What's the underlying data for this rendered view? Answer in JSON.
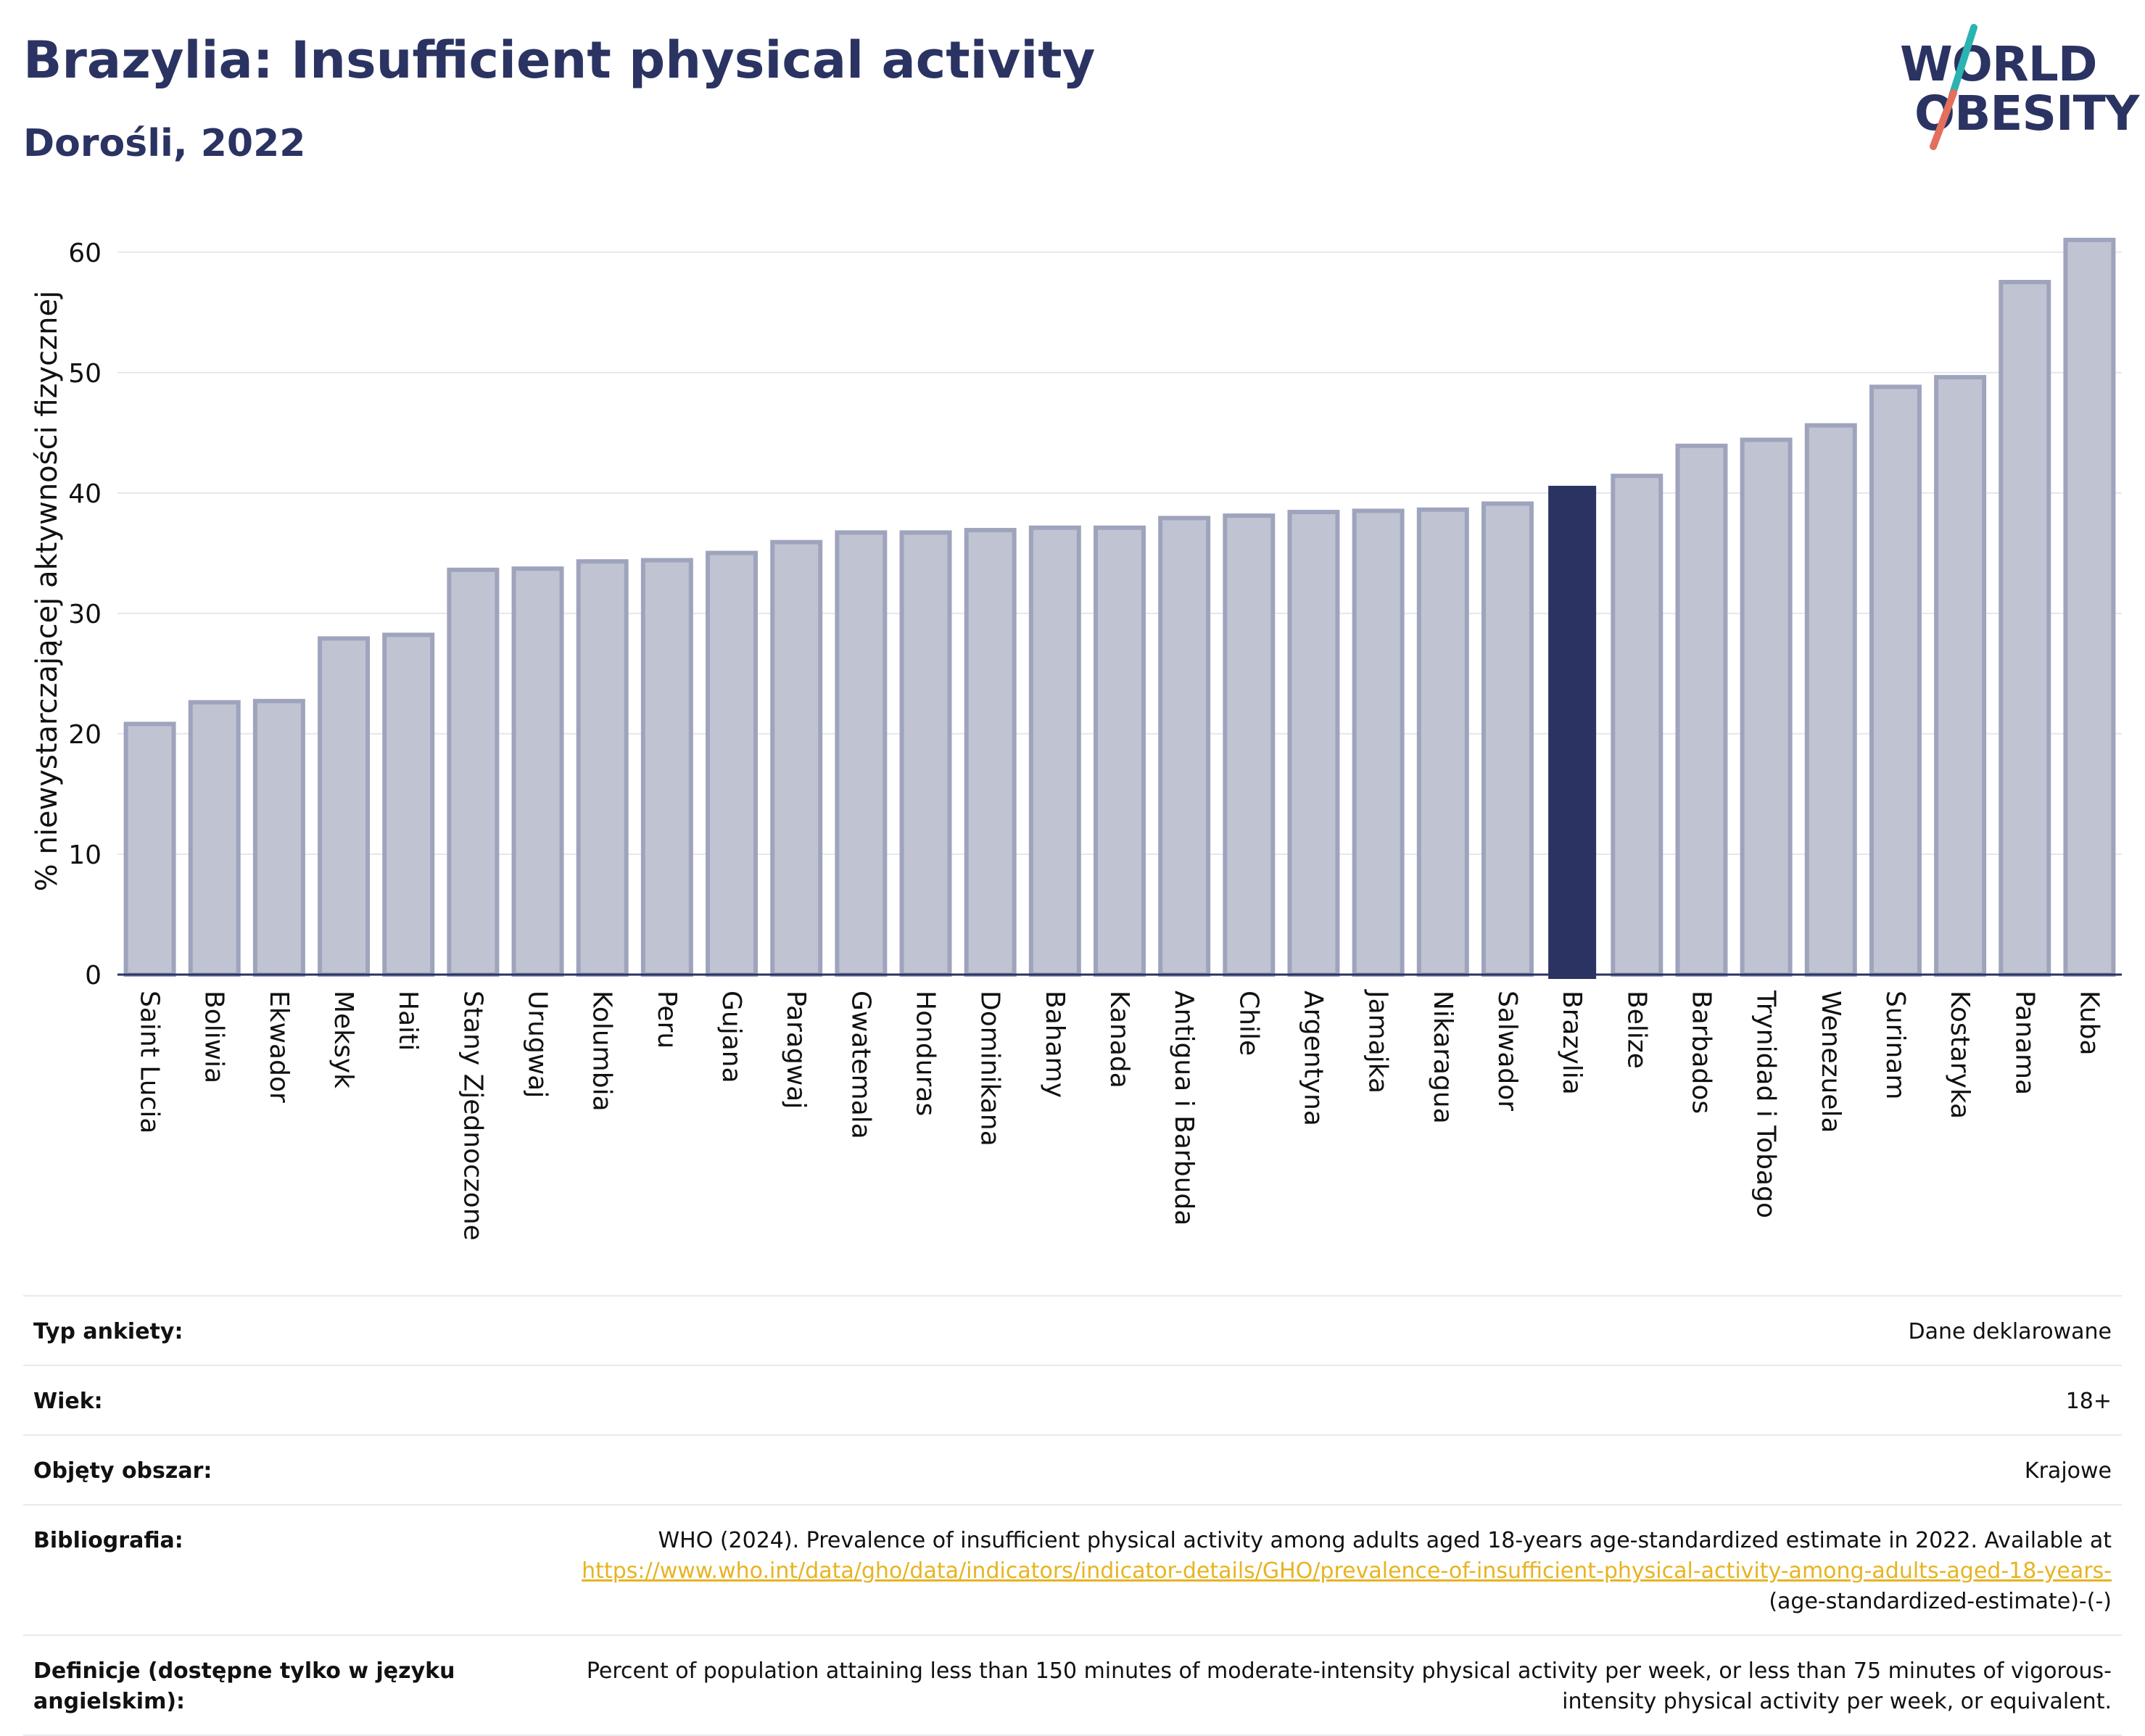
{
  "header": {
    "title": "Brazylia: Insufficient physical activity",
    "subtitle": "Dorośli, 2022"
  },
  "logo": {
    "line1": "WORLD",
    "line2": "OBESITY",
    "colors": {
      "text": "#2a3362",
      "slash_top": "#2bb3b1",
      "slash_bottom": "#e36f5c"
    }
  },
  "chart_data": {
    "type": "bar",
    "ylabel": "% niewystarczającej aktywności fizycznej",
    "ylim": [
      0,
      63
    ],
    "yticks": [
      0,
      10,
      20,
      30,
      40,
      50,
      60
    ],
    "grid": true,
    "highlight": "Brazylia",
    "colors": {
      "bar": "#c0c3d2",
      "bar_border": "#9fa4bd",
      "highlight": "#2a3362"
    },
    "categories": [
      "Saint Lucia",
      "Boliwia",
      "Ekwador",
      "Meksyk",
      "Haiti",
      "Stany Zjednoczone",
      "Urugwaj",
      "Kolumbia",
      "Peru",
      "Gujana",
      "Paragwaj",
      "Gwatemala",
      "Honduras",
      "Dominikana",
      "Bahamy",
      "Kanada",
      "Antigua i Barbuda",
      "Chile",
      "Argentyna",
      "Jamajka",
      "Nikaragua",
      "Salwador",
      "Brazylia",
      "Belize",
      "Barbados",
      "Trynidad i Tobago",
      "Wenezuela",
      "Surinam",
      "Kostaryka",
      "Panama",
      "Kuba"
    ],
    "values": [
      21.0,
      22.8,
      22.9,
      28.1,
      28.4,
      33.8,
      33.9,
      34.5,
      34.6,
      35.2,
      36.1,
      36.9,
      36.9,
      37.1,
      37.3,
      37.3,
      38.1,
      38.3,
      38.6,
      38.7,
      38.8,
      39.3,
      40.6,
      41.6,
      44.1,
      44.6,
      45.8,
      49.0,
      49.8,
      57.7,
      61.2
    ]
  },
  "meta": {
    "survey_label": "Typ ankiety:",
    "survey_value": "Dane deklarowane",
    "age_label": "Wiek:",
    "age_value": "18+",
    "area_label": "Objęty obszar:",
    "area_value": "Krajowe",
    "bib_label": "Bibliografia:",
    "bib_text": "WHO (2024). Prevalence of insufficient physical activity among adults aged 18-years age-standardized estimate in 2022. Available at",
    "bib_link": "https://www.who.int/data/gho/data/indicators/indicator-details/GHO/prevalence-of-insufficient-physical-activity-among-adults-aged-18-years-",
    "bib_suffix": "(age-standardized-estimate)-(-)",
    "def_label": "Definicje (dostępne tylko w języku angielskim):",
    "def_value": "Percent of population attaining less than 150 minutes of moderate-intensity physical activity per week, or less than 75 minutes of vigorous-intensity physical activity per week, or equivalent."
  }
}
